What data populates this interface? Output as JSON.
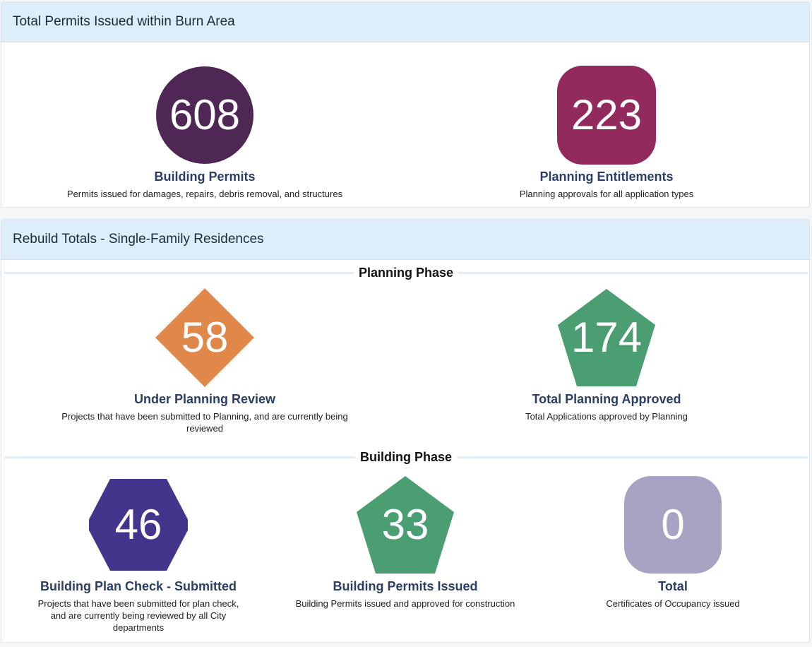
{
  "panels": {
    "total": {
      "title": "Total Permits Issued within Burn Area",
      "building_permits": {
        "value": "608",
        "title": "Building Permits",
        "desc": "Permits issued for damages, repairs, debris removal, and structures",
        "color": "#4f2755",
        "shape": "circle"
      },
      "planning_entitlements": {
        "value": "223",
        "title": "Planning Entitlements",
        "desc": "Planning approvals for all application types",
        "color": "#922a5e",
        "shape": "rounded-square"
      }
    },
    "rebuild": {
      "title": "Rebuild Totals - Single-Family Residences",
      "planning_phase_label": "Planning Phase",
      "building_phase_label": "Building Phase",
      "under_planning_review": {
        "value": "58",
        "title": "Under Planning Review",
        "desc": "Projects that have been submitted to Planning, and are currently being reviewed",
        "color": "#e0874a",
        "shape": "diamond"
      },
      "total_planning_approved": {
        "value": "174",
        "title": "Total Planning Approved",
        "desc": "Total Applications approved by Planning",
        "color": "#4a9e72",
        "shape": "pentagon"
      },
      "plan_check_submitted": {
        "value": "46",
        "title": "Building Plan Check - Submitted",
        "desc": "Projects that have been submitted for plan check, and are currently being reviewed by all City departments",
        "color": "#44348b",
        "shape": "hexagon"
      },
      "building_permits_issued": {
        "value": "33",
        "title": "Building Permits Issued",
        "desc": "Building Permits issued and approved for construction",
        "color": "#4a9e72",
        "shape": "pentagon"
      },
      "certificates_total": {
        "value": "0",
        "title": "Total",
        "desc": "Certificates of Occupancy issued",
        "color": "#a7a3c2",
        "shape": "rounded-square"
      }
    }
  }
}
